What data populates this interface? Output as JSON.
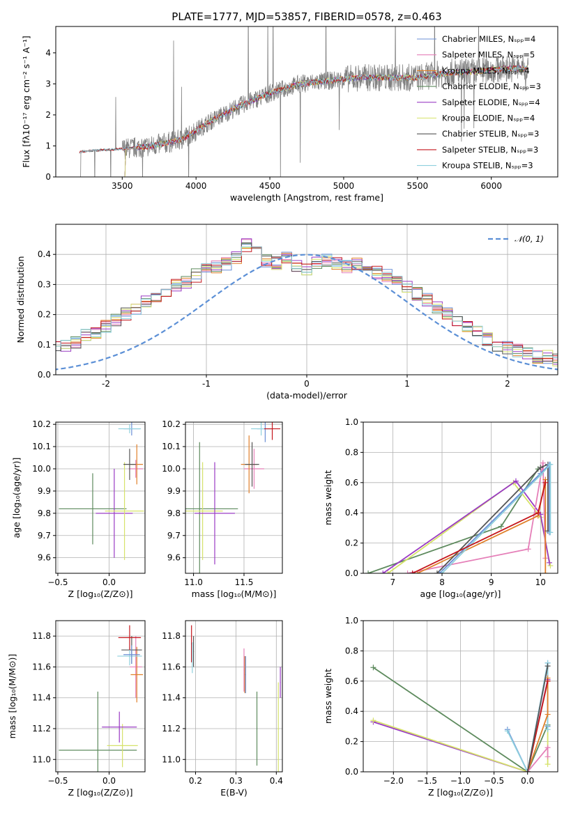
{
  "figure_title": "PLATE=1777, MJD=53857, FIBERID=0578, z=0.463",
  "colors": {
    "Chabrier MILES": "#6b8fd6",
    "Salpeter MILES": "#e57fb8",
    "Kroupa MILES": "#e0802a",
    "Chabrier ELODIE": "#5d8a5d",
    "Salpeter ELODIE": "#9a3bc4",
    "Kroupa ELODIE": "#d6e26a",
    "Chabrier STELIB": "#555555",
    "Salpeter STELIB": "#c4161c",
    "Kroupa STELIB": "#8fd0dd",
    "normal": "#5b8fd6",
    "data": "#808080"
  },
  "chart_data": [
    {
      "type": "line",
      "id": "spectrum",
      "xlabel": "wavelength [Angstrom, rest frame]",
      "ylabel": "Flux [fλ10⁻¹⁷ erg cm⁻² s⁻¹ A⁻¹]",
      "xlim": [
        3050,
        6450
      ],
      "ylim": [
        0,
        4.85
      ],
      "xticks": [
        3500,
        4000,
        4500,
        5000,
        5500,
        6000
      ],
      "yticks": [
        0,
        1,
        2,
        3,
        4
      ],
      "grid": false,
      "legend_position": "top-right",
      "data_trend": {
        "x": [
          3210,
          3300,
          3500,
          3700,
          3900,
          4100,
          4300,
          4500,
          4700,
          4900,
          5100,
          5300,
          5500,
          5700,
          5900,
          6100,
          6250
        ],
        "y": [
          0.8,
          0.85,
          0.9,
          1.0,
          1.2,
          1.8,
          2.3,
          2.7,
          3.0,
          3.1,
          3.2,
          3.2,
          3.2,
          3.35,
          3.4,
          3.5,
          3.5
        ]
      },
      "legend": [
        "Chabrier MILES, Nₛₚₚ=4",
        "Salpeter MILES, Nₛₚₚ=5",
        "Kroupa MILES, Nₛₚₚ=4",
        "Chabrier ELODIE, Nₛₚₚ=3",
        "Salpeter ELODIE, Nₛₚₚ=4",
        "Kroupa ELODIE, Nₛₚₚ=4",
        "Chabrier STELIB, Nₛₚₚ=3",
        "Salpeter STELIB, Nₛₚₚ=3",
        "Kroupa STELIB, Nₛₚₚ=3"
      ]
    },
    {
      "type": "area",
      "id": "residuals",
      "xlabel": "(data-model)/error",
      "ylabel": "Normed distribution",
      "xlim": [
        -2.5,
        2.5
      ],
      "ylim": [
        0,
        0.5
      ],
      "xticks": [
        -2,
        -1,
        0,
        1,
        2
      ],
      "yticks": [
        0.0,
        0.1,
        0.2,
        0.3,
        0.4
      ],
      "grid": true,
      "legend": [
        "𝒩(0, 1)"
      ],
      "legend_position": "top-right",
      "bin_width": 0.1,
      "histogram_base": [
        0.02,
        0.02,
        0.03,
        0.03,
        0.04,
        0.05,
        0.06,
        0.07,
        0.08,
        0.09,
        0.1,
        0.11,
        0.13,
        0.14,
        0.16,
        0.18,
        0.2,
        0.22,
        0.24,
        0.26,
        0.28,
        0.3,
        0.31,
        0.33,
        0.35,
        0.36,
        0.37,
        0.39,
        0.43,
        0.41,
        0.38,
        0.37,
        0.39,
        0.36,
        0.35,
        0.37,
        0.38,
        0.37,
        0.36,
        0.37,
        0.35,
        0.34,
        0.33,
        0.31,
        0.29,
        0.27,
        0.25,
        0.22,
        0.2,
        0.18,
        0.16,
        0.14,
        0.12,
        0.1,
        0.09,
        0.08,
        0.07,
        0.06,
        0.06,
        0.05,
        0.05,
        0.04,
        0.04,
        0.03,
        0.03,
        0.03,
        0.02,
        0.02,
        0.02,
        0.02
      ]
    },
    {
      "type": "scatter",
      "id": "age-vs-Z",
      "xlabel": "Z [log₁₀(Z/Z⊙)]",
      "ylabel": "age  [log₁₀(age/yr)]",
      "xlim": [
        -0.52,
        0.35
      ],
      "ylim": [
        9.53,
        10.21
      ],
      "xticks": [
        -0.5,
        0.0,
        0.5
      ],
      "yticks": [
        9.6,
        9.7,
        9.8,
        9.9,
        10.0,
        10.1,
        10.2
      ],
      "grid": true,
      "points": [
        {
          "model": "Chabrier ELODIE",
          "x": -0.16,
          "y": 9.82,
          "xerr": 0.33,
          "yerr": 0.16
        },
        {
          "model": "Salpeter ELODIE",
          "x": 0.05,
          "y": 9.8,
          "xerr": 0.18,
          "yerr": 0.2
        },
        {
          "model": "Kroupa ELODIE",
          "x": 0.15,
          "y": 9.81,
          "xerr": 0.19,
          "yerr": 0.22
        },
        {
          "model": "Chabrier MILES",
          "x": 0.22,
          "y": 10.18,
          "xerr": 0.08,
          "yerr": 0.03
        },
        {
          "model": "Kroupa STELIB",
          "x": 0.2,
          "y": 10.18,
          "xerr": 0.11,
          "yerr": 0.02
        },
        {
          "model": "Salpeter MILES",
          "x": 0.26,
          "y": 10.0,
          "xerr": 0.07,
          "yerr": 0.04
        },
        {
          "model": "Kroupa MILES",
          "x": 0.27,
          "y": 10.02,
          "xerr": 0.06,
          "yerr": 0.09
        },
        {
          "model": "Chabrier STELIB",
          "x": 0.2,
          "y": 10.02,
          "xerr": 0.06,
          "yerr": 0.07
        }
      ]
    },
    {
      "type": "scatter",
      "id": "age-vs-mass",
      "xlabel": "mass [log₁₀(M/M⊙)]",
      "ylabel": "",
      "xlim": [
        10.92,
        11.88
      ],
      "ylim": [
        9.53,
        10.21
      ],
      "xticks": [
        11.0,
        11.5
      ],
      "yticks": [
        9.6,
        9.7,
        9.8,
        9.9,
        10.0,
        10.1,
        10.2
      ],
      "grid": true,
      "points": [
        {
          "model": "Chabrier ELODIE",
          "x": 11.06,
          "y": 9.82,
          "xerr": 0.38,
          "yerr": 0.3
        },
        {
          "model": "Kroupa ELODIE",
          "x": 11.09,
          "y": 9.81,
          "xerr": 0.2,
          "yerr": 0.22
        },
        {
          "model": "Salpeter ELODIE",
          "x": 11.21,
          "y": 9.8,
          "xerr": 0.2,
          "yerr": 0.23
        },
        {
          "model": "Salpeter MILES",
          "x": 11.6,
          "y": 10.0,
          "xerr": 0.1,
          "yerr": 0.09
        },
        {
          "model": "Kroupa MILES",
          "x": 11.55,
          "y": 10.02,
          "xerr": 0.08,
          "yerr": 0.13
        },
        {
          "model": "Chabrier STELIB",
          "x": 11.58,
          "y": 10.02,
          "xerr": 0.07,
          "yerr": 0.1
        },
        {
          "model": "Chabrier MILES",
          "x": 11.71,
          "y": 10.18,
          "xerr": 0.08,
          "yerr": 0.06
        },
        {
          "model": "Kroupa STELIB",
          "x": 11.67,
          "y": 10.18,
          "xerr": 0.1,
          "yerr": 0.03
        },
        {
          "model": "Salpeter STELIB",
          "x": 11.78,
          "y": 10.18,
          "xerr": 0.08,
          "yerr": 0.05
        }
      ]
    },
    {
      "type": "line",
      "id": "weight-vs-age",
      "xlabel": "age  [log₁₀(age/yr)]",
      "ylabel": "mass weight",
      "xlim": [
        6.4,
        10.35
      ],
      "ylim": [
        0,
        1.0
      ],
      "xticks": [
        7,
        8,
        9,
        10
      ],
      "yticks": [
        0.0,
        0.2,
        0.4,
        0.6,
        0.8,
        1.0
      ],
      "grid": true,
      "series": [
        {
          "model": "Chabrier ELODIE",
          "x": [
            6.5,
            9.2,
            9.95
          ],
          "y": [
            0.0,
            0.31,
            0.69
          ]
        },
        {
          "model": "Kroupa ELODIE",
          "x": [
            6.9,
            9.45,
            10.0,
            10.2
          ],
          "y": [
            0.0,
            0.6,
            0.37,
            0.05
          ]
        },
        {
          "model": "Salpeter ELODIE",
          "x": [
            6.8,
            9.5,
            10.0,
            10.18
          ],
          "y": [
            0.0,
            0.61,
            0.39,
            0.07
          ]
        },
        {
          "model": "Salpeter MILES",
          "x": [
            7.3,
            9.75,
            10.05,
            10.1
          ],
          "y": [
            0.0,
            0.16,
            0.73,
            0.1
          ]
        },
        {
          "model": "Kroupa MILES",
          "x": [
            7.5,
            9.95,
            10.1,
            10.1
          ],
          "y": [
            0.0,
            0.38,
            0.62,
            0.0
          ]
        },
        {
          "model": "Chabrier STELIB",
          "x": [
            7.9,
            10.0,
            10.15,
            10.15
          ],
          "y": [
            0.0,
            0.7,
            0.72,
            0.28
          ]
        },
        {
          "model": "Chabrier MILES",
          "x": [
            7.95,
            10.0,
            10.18,
            10.18
          ],
          "y": [
            0.0,
            0.66,
            0.72,
            0.27
          ]
        },
        {
          "model": "Kroupa STELIB",
          "x": [
            8.0,
            10.0,
            10.2,
            10.2
          ],
          "y": [
            0.0,
            0.65,
            0.72,
            0.27
          ]
        },
        {
          "model": "Salpeter STELIB",
          "x": [
            7.4,
            9.95,
            10.1
          ],
          "y": [
            0.0,
            0.4,
            0.6
          ]
        }
      ]
    },
    {
      "type": "scatter",
      "id": "mass-vs-Z",
      "xlabel": "Z [log₁₀(Z/Z⊙)]",
      "ylabel": "mass [log₁₀(M/M⊙)]",
      "xlim": [
        -0.52,
        0.35
      ],
      "ylim": [
        10.92,
        11.9
      ],
      "xticks": [
        -0.5,
        0.0,
        0.5
      ],
      "yticks": [
        11.0,
        11.2,
        11.4,
        11.6,
        11.8
      ],
      "grid": true,
      "points": [
        {
          "model": "Chabrier ELODIE",
          "x": -0.11,
          "y": 11.06,
          "xerr": 0.38,
          "yerr": 0.38
        },
        {
          "model": "Kroupa ELODIE",
          "x": 0.13,
          "y": 11.09,
          "xerr": 0.15,
          "yerr": 0.14
        },
        {
          "model": "Salpeter ELODIE",
          "x": 0.1,
          "y": 11.21,
          "xerr": 0.17,
          "yerr": 0.1
        },
        {
          "model": "Salpeter MILES",
          "x": 0.26,
          "y": 11.6,
          "xerr": 0.06,
          "yerr": 0.2
        },
        {
          "model": "Kroupa MILES",
          "x": 0.27,
          "y": 11.55,
          "xerr": 0.06,
          "yerr": 0.18
        },
        {
          "model": "Chabrier STELIB",
          "x": 0.22,
          "y": 11.71,
          "xerr": 0.1,
          "yerr": 0.09
        },
        {
          "model": "Kroupa STELIB",
          "x": 0.2,
          "y": 11.67,
          "xerr": 0.12,
          "yerr": 0.06
        },
        {
          "model": "Salpeter STELIB",
          "x": 0.2,
          "y": 11.79,
          "xerr": 0.11,
          "yerr": 0.08
        },
        {
          "model": "Chabrier MILES",
          "x": 0.22,
          "y": 11.68,
          "xerr": 0.08,
          "yerr": 0.06
        }
      ]
    },
    {
      "type": "scatter",
      "id": "mass-vs-EBV",
      "xlabel": "E(B-V)",
      "ylabel": "",
      "xlim": [
        0.175,
        0.415
      ],
      "ylim": [
        10.92,
        11.9
      ],
      "xticks": [
        0.2,
        0.3,
        0.4
      ],
      "yticks": [
        11.0,
        11.2,
        11.4,
        11.6,
        11.8
      ],
      "grid": true,
      "points": [
        {
          "model": "Salpeter STELIB",
          "x": 0.19,
          "y": 11.75,
          "xerr": 0.001,
          "yerr": 0.12
        },
        {
          "model": "Kroupa STELIB",
          "x": 0.192,
          "y": 11.66,
          "xerr": 0.001,
          "yerr": 0.1
        },
        {
          "model": "Chabrier STELIB",
          "x": 0.195,
          "y": 11.7,
          "xerr": 0.001,
          "yerr": 0.1
        },
        {
          "model": "Salpeter MILES",
          "x": 0.32,
          "y": 11.58,
          "xerr": 0.001,
          "yerr": 0.14
        },
        {
          "model": "Kroupa MILES",
          "x": 0.322,
          "y": 11.55,
          "xerr": 0.001,
          "yerr": 0.12
        },
        {
          "model": "Chabrier MILES",
          "x": 0.324,
          "y": 11.55,
          "xerr": 0.001,
          "yerr": 0.12
        },
        {
          "model": "Chabrier ELODIE",
          "x": 0.352,
          "y": 11.2,
          "xerr": 0.001,
          "yerr": 0.24
        },
        {
          "model": "Salpeter ELODIE",
          "x": 0.41,
          "y": 11.5,
          "xerr": 0.001,
          "yerr": 0.1
        },
        {
          "model": "Kroupa ELODIE",
          "x": 0.405,
          "y": 11.2,
          "xerr": 0.001,
          "yerr": 0.3
        }
      ]
    },
    {
      "type": "line",
      "id": "weight-vs-Z",
      "xlabel": "Z [log₁₀(Z/Z⊙)]",
      "ylabel": "mass weight",
      "xlim": [
        -2.45,
        0.45
      ],
      "ylim": [
        0,
        1.0
      ],
      "xticks": [
        -2.0,
        -1.5,
        -1.0,
        -0.5,
        0.0
      ],
      "yticks": [
        0.0,
        0.2,
        0.4,
        0.6,
        0.8,
        1.0
      ],
      "grid": true,
      "series": [
        {
          "model": "Chabrier ELODIE",
          "x": [
            -2.3,
            0.0,
            0.3
          ],
          "y": [
            0.69,
            0.0,
            0.31
          ]
        },
        {
          "model": "Salpeter ELODIE",
          "x": [
            -2.3,
            0.0,
            0.3
          ],
          "y": [
            0.33,
            0.0,
            0.61
          ]
        },
        {
          "model": "Kroupa ELODIE",
          "x": [
            -2.3,
            0.0,
            0.3,
            0.3
          ],
          "y": [
            0.34,
            0.0,
            0.6,
            0.05
          ]
        },
        {
          "model": "Chabrier MILES",
          "x": [
            -0.3,
            0.0,
            0.3,
            0.3
          ],
          "y": [
            0.28,
            0.0,
            0.72,
            0.3
          ]
        },
        {
          "model": "Kroupa STELIB",
          "x": [
            -0.3,
            0.0,
            0.3,
            0.3
          ],
          "y": [
            0.27,
            0.0,
            0.72,
            0.28
          ]
        },
        {
          "model": "Kroupa MILES",
          "x": [
            0.0,
            0.3,
            0.3
          ],
          "y": [
            0.0,
            0.38,
            0.62
          ]
        },
        {
          "model": "Salpeter MILES",
          "x": [
            0.0,
            0.3,
            0.3
          ],
          "y": [
            0.0,
            0.16,
            0.1
          ]
        },
        {
          "model": "Salpeter STELIB",
          "x": [
            0.0,
            0.3
          ],
          "y": [
            0.0,
            0.6
          ]
        },
        {
          "model": "Chabrier STELIB",
          "x": [
            0.0,
            0.3
          ],
          "y": [
            0.0,
            0.7
          ]
        }
      ]
    }
  ]
}
